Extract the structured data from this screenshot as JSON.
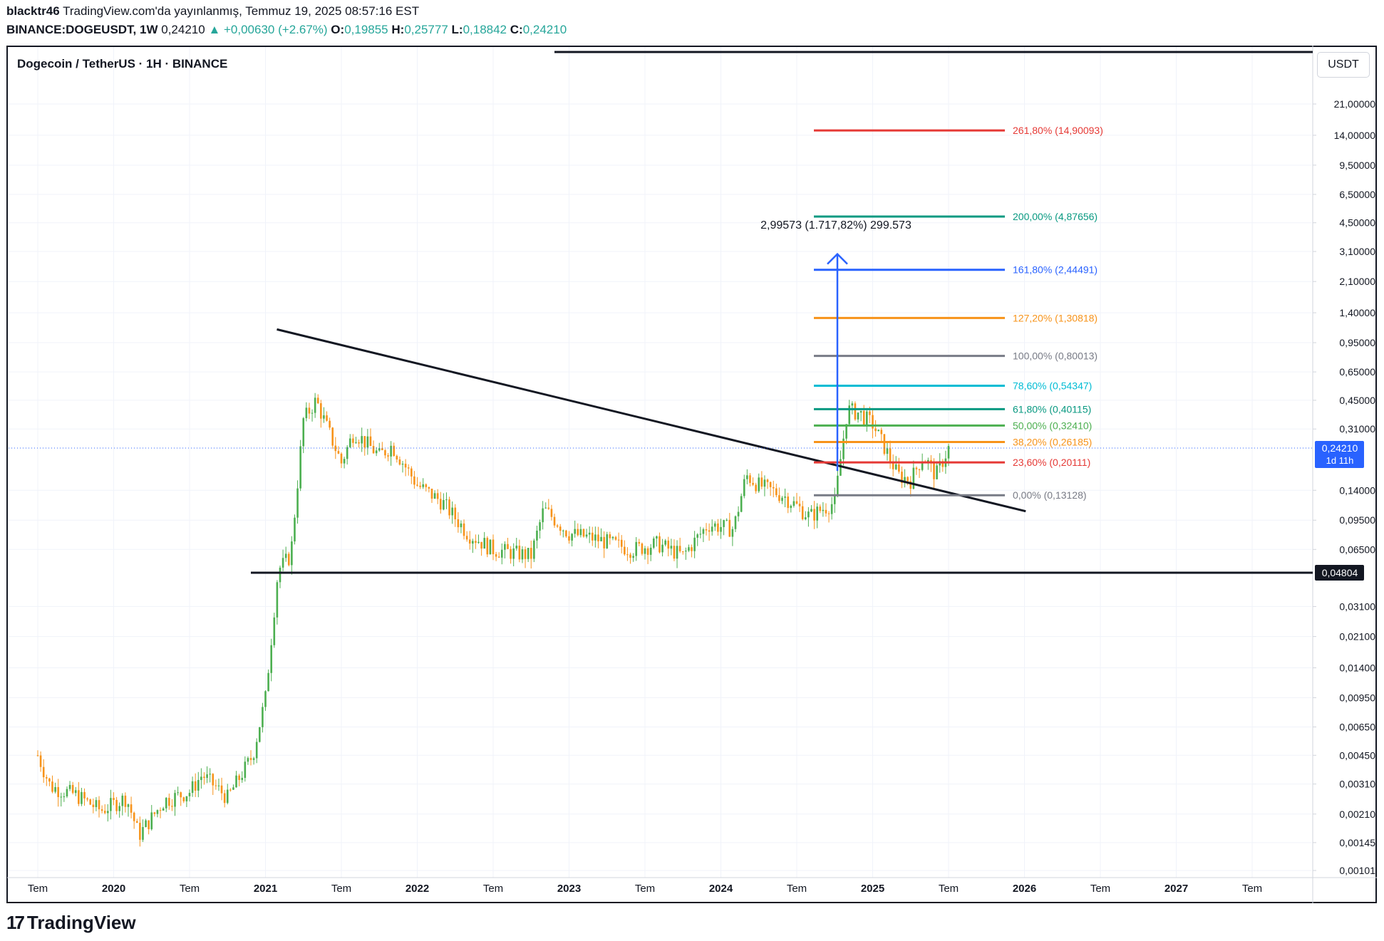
{
  "header": {
    "author": "blacktr46",
    "published": "TradingView.com'da yayınlanmış, Temmuz 19, 2025 08:57:16 EST",
    "symbol": "BINANCE:DOGEUSDT, 1W",
    "last": "0,24210",
    "change": "+0,00630 (+2.67%)",
    "o_label": "O:",
    "o": "0,19855",
    "h_label": "H:",
    "h": "0,25777",
    "l_label": "L:",
    "l": "0,18842",
    "c_label": "C:",
    "c": "0,24210"
  },
  "chart_title": "Dogecoin / TetherUS · 1H · BINANCE",
  "currency": "USDT",
  "footer": {
    "logo_mark": "17",
    "logo_text": "TradingView"
  },
  "colors": {
    "up": "#26a69a",
    "green_candle": "#4caf50",
    "orange_candle": "#f7931a",
    "red": "#e53935",
    "blue": "#2962ff",
    "gray": "#787b86",
    "price_tag": "#2962ff",
    "level_tag": "#131722"
  },
  "chart_data": {
    "type": "candlestick",
    "y_scale": "log",
    "y_ticks": [
      "21,00000",
      "14,00000",
      "9,50000",
      "6,50000",
      "4,50000",
      "3,10000",
      "2,10000",
      "1,40000",
      "0,95000",
      "0,65000",
      "0,45000",
      "0,31000",
      "0,14000",
      "0,09500",
      "0,06500",
      "0,03100",
      "0,02100",
      "0,01400",
      "0,00950",
      "0,00650",
      "0,00450",
      "0,00310",
      "0,00210",
      "0,00145",
      "0,00101"
    ],
    "x_ticks": [
      "Tem",
      "2020",
      "Tem",
      "2021",
      "Tem",
      "2022",
      "Tem",
      "2023",
      "Tem",
      "2024",
      "Tem",
      "2025",
      "Tem",
      "2026",
      "Tem",
      "2027",
      "Tem"
    ],
    "current_price": {
      "value": 0.2421,
      "label": "0,24210",
      "countdown": "1d 11h"
    },
    "support_level": {
      "value": 0.04804,
      "label": "0,04804"
    },
    "top_line_label": "",
    "fib_levels": [
      {
        "label": "261,80% (14,90093)",
        "value": 14.90093,
        "color": "#e53935"
      },
      {
        "label": "200,00% (4,87656)",
        "value": 4.87656,
        "color": "#089981"
      },
      {
        "label": "161,80% (2,44491)",
        "value": 2.44491,
        "color": "#2962ff"
      },
      {
        "label": "127,20% (1,30818)",
        "value": 1.30818,
        "color": "#f7931a"
      },
      {
        "label": "100,00% (0,80013)",
        "value": 0.80013,
        "color": "#787b86"
      },
      {
        "label": "78,60% (0,54347)",
        "value": 0.54347,
        "color": "#00bcd4"
      },
      {
        "label": "61,80% (0,40115)",
        "value": 0.40115,
        "color": "#089981"
      },
      {
        "label": "50,00% (0,32410)",
        "value": 0.3241,
        "color": "#4caf50"
      },
      {
        "label": "38,20% (0,26185)",
        "value": 0.26185,
        "color": "#f7931a"
      },
      {
        "label": "23,60% (0,20111)",
        "value": 0.20111,
        "color": "#e53935"
      },
      {
        "label": "0,00% (0,13128)",
        "value": 0.13128,
        "color": "#787b86"
      }
    ],
    "measure_label": "2,99573 (1.717,82%) 299.573",
    "trendline": {
      "from": {
        "date": "2021-05",
        "price": 0.78
      },
      "to": {
        "date": "2025-10",
        "price": 0.117
      }
    },
    "series_anchor_prices": [
      [
        "2019-07",
        0.0045
      ],
      [
        "2019-08",
        0.003
      ],
      [
        "2019-10",
        0.0027
      ],
      [
        "2019-12",
        0.0022
      ],
      [
        "2020-02",
        0.0026
      ],
      [
        "2020-03",
        0.0016
      ],
      [
        "2020-05",
        0.0025
      ],
      [
        "2020-07",
        0.0028
      ],
      [
        "2020-08",
        0.0035
      ],
      [
        "2020-10",
        0.0026
      ],
      [
        "2020-12",
        0.0045
      ],
      [
        "2021-01",
        0.0095
      ],
      [
        "2021-02",
        0.05
      ],
      [
        "2021-03",
        0.06
      ],
      [
        "2021-04",
        0.35
      ],
      [
        "2021-05",
        0.45
      ],
      [
        "2021-07",
        0.2
      ],
      [
        "2021-08",
        0.3
      ],
      [
        "2021-10",
        0.22
      ],
      [
        "2021-11",
        0.25
      ],
      [
        "2022-01",
        0.15
      ],
      [
        "2022-03",
        0.12
      ],
      [
        "2022-05",
        0.08
      ],
      [
        "2022-07",
        0.065
      ],
      [
        "2022-10",
        0.06
      ],
      [
        "2022-11",
        0.11
      ],
      [
        "2023-01",
        0.08
      ],
      [
        "2023-03",
        0.075
      ],
      [
        "2023-06",
        0.065
      ],
      [
        "2023-08",
        0.07
      ],
      [
        "2023-10",
        0.06
      ],
      [
        "2023-12",
        0.09
      ],
      [
        "2024-02",
        0.085
      ],
      [
        "2024-03",
        0.17
      ],
      [
        "2024-04",
        0.15
      ],
      [
        "2024-06",
        0.13
      ],
      [
        "2024-08",
        0.1
      ],
      [
        "2024-10",
        0.12
      ],
      [
        "2024-11",
        0.4
      ],
      [
        "2024-12",
        0.38
      ],
      [
        "2025-01",
        0.33
      ],
      [
        "2025-02",
        0.24
      ],
      [
        "2025-03",
        0.17
      ],
      [
        "2025-04",
        0.16
      ],
      [
        "2025-05",
        0.22
      ],
      [
        "2025-06",
        0.17
      ],
      [
        "2025-07",
        0.2421
      ]
    ]
  }
}
